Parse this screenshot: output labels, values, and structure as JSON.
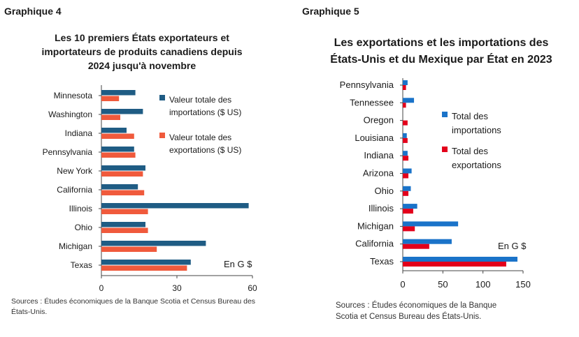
{
  "chart_data": [
    {
      "type": "bar",
      "panel_label": "Graphique 4",
      "title_lines": [
        "Les 10 premiers États exportateurs et",
        "importateurs de produits canadiens depuis",
        "2024 jusqu'à novembre"
      ],
      "categories": [
        "Minnesota",
        "Washington",
        "Indiana",
        "Pennsylvania",
        "New York",
        "California",
        "Illinois",
        "Ohio",
        "Michigan",
        "Texas"
      ],
      "series": [
        {
          "name": "Valeur totale des importations ($ US)",
          "color": "#1f5c84",
          "values": [
            13.5,
            16.5,
            10,
            13,
            17.5,
            14.5,
            58.5,
            17.5,
            41.5,
            35.5
          ]
        },
        {
          "name": "Valeur totale des exportations ($ US)",
          "color": "#f05a3c",
          "values": [
            7,
            7.5,
            13,
            13.5,
            16.5,
            17,
            18.5,
            18.5,
            22,
            34
          ]
        }
      ],
      "legend_lines": [
        [
          "Valeur totale des",
          "importations ($ US)"
        ],
        [
          "Valeur totale des",
          "exportations ($ US)"
        ]
      ],
      "unit_note": "En G $",
      "xlim": [
        0,
        60
      ],
      "xticks": [
        "0",
        "30",
        "60"
      ],
      "grid": false,
      "sources_lines": [
        "Sources : Études économiques de la Banque Scotia et Census Bureau des",
        "États-Unis."
      ]
    },
    {
      "type": "bar",
      "panel_label": "Graphique 5",
      "title_lines": [
        "Les exportations et les importations des",
        "États-Unis et du Mexique par État en 2023"
      ],
      "categories": [
        "Pennsylvania",
        "Tennessee",
        "Oregon",
        "Louisiana",
        "Indiana",
        "Arizona",
        "Ohio",
        "Illinois",
        "Michigan",
        "California",
        "Texas"
      ],
      "series": [
        {
          "name": "Total des importations",
          "color": "#1a73c9",
          "values": [
            6,
            14,
            0,
            5,
            6,
            11,
            10,
            18,
            69,
            61,
            143
          ]
        },
        {
          "name": "Total des exportations",
          "color": "#e3001b",
          "values": [
            4,
            4,
            6,
            6,
            7,
            7,
            7,
            13,
            15,
            33,
            129
          ]
        }
      ],
      "legend_lines": [
        [
          "Total des",
          "importations"
        ],
        [
          "Total des",
          "exportations"
        ]
      ],
      "unit_note": "En G $",
      "xlim": [
        0,
        150
      ],
      "xticks": [
        "0",
        "50",
        "100",
        "150"
      ],
      "grid": false,
      "sources_lines": [
        "Sources : Études économiques de la Banque",
        "Scotia et Census Bureau des États-Unis."
      ]
    }
  ]
}
